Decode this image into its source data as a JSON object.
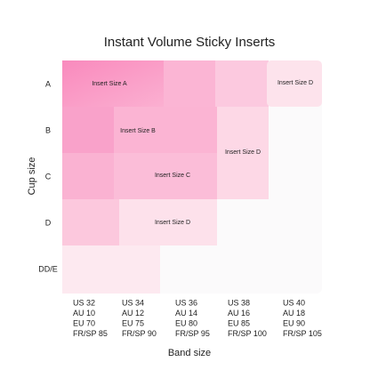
{
  "title": "Instant Volume Sticky Inserts",
  "y_axis_label": "Cup size",
  "x_axis_label": "Band size",
  "rows": [
    "A",
    "B",
    "C",
    "D",
    "DD/E"
  ],
  "columns": [
    [
      "US 32",
      "AU 10",
      "EU 70",
      "FR/SP 85"
    ],
    [
      "US 34",
      "AU 12",
      "EU 75",
      "FR/SP 90"
    ],
    [
      "US 36",
      "AU 14",
      "EU 80",
      "FR/SP 95"
    ],
    [
      "US 38",
      "AU 16",
      "EU 85",
      "FR/SP 100"
    ],
    [
      "US 40",
      "AU 18",
      "EU 90",
      "FR/SP 105"
    ]
  ],
  "regions": [
    "Insert Size A",
    "Insert Size B",
    "Insert Size C",
    "Insert Size D",
    "Insert Size D",
    "Insert Size D"
  ]
}
